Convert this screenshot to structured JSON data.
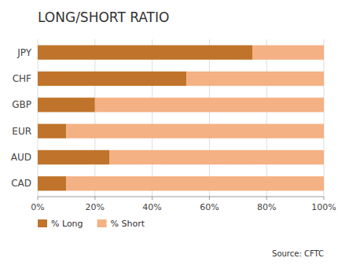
{
  "chart_data": {
    "type": "bar",
    "orientation": "horizontal",
    "stacked": true,
    "title": "LONG/SHORT RATIO",
    "categories": [
      "CAD",
      "AUD",
      "EUR",
      "GBP",
      "CHF",
      "JPY"
    ],
    "series": [
      {
        "name": "% Long",
        "color": "#C0732A",
        "values": [
          10,
          25,
          10,
          20,
          52,
          75
        ]
      },
      {
        "name": "% Short",
        "color": "#F4B183",
        "values": [
          90,
          75,
          90,
          80,
          48,
          25
        ]
      }
    ],
    "xlim": [
      0,
      100
    ],
    "xticks": [
      {
        "value": 0,
        "label": "0%"
      },
      {
        "value": 20,
        "label": "20%"
      },
      {
        "value": 40,
        "label": "40%"
      },
      {
        "value": 60,
        "label": "60%"
      },
      {
        "value": 80,
        "label": "80%"
      },
      {
        "value": 100,
        "label": "100%"
      }
    ],
    "grid": true,
    "legend": "bottom",
    "annotations": [
      "Source: CFTC"
    ]
  }
}
